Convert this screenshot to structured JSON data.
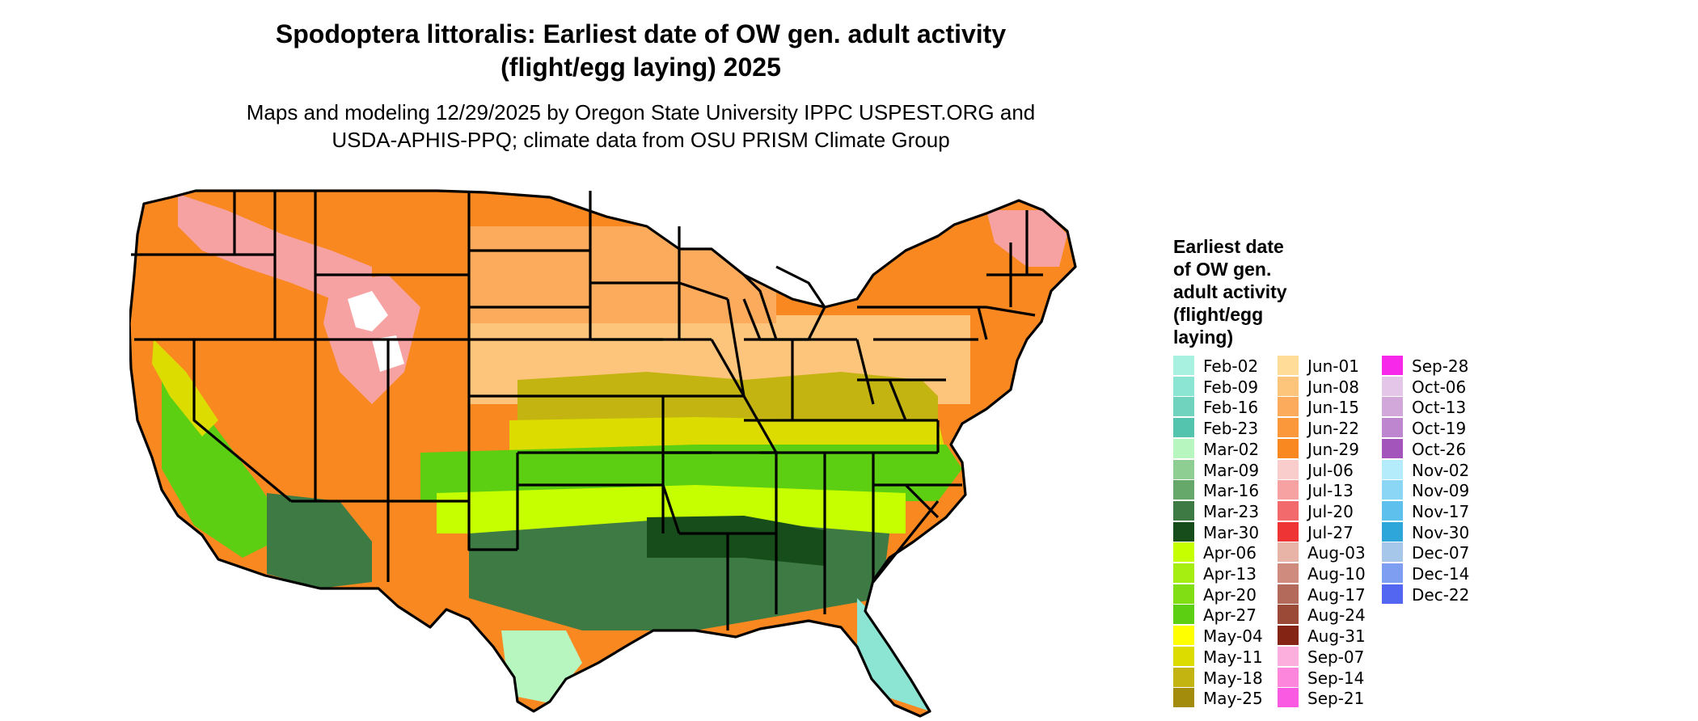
{
  "title": {
    "line1": "Spodoptera littoralis: Earliest date of OW gen. adult activity",
    "line2": "(flight/egg laying) 2025"
  },
  "subtitle": {
    "line1": "Maps and modeling 12/29/2025 by Oregon State University IPPC USPEST.ORG and",
    "line2": "USDA-APHIS-PPQ; climate data from OSU PRISM Climate Group"
  },
  "legend": {
    "title_lines": [
      "Earliest date",
      "of OW gen.",
      "adult activity",
      "(flight/egg",
      "laying)"
    ],
    "items": [
      {
        "label": "Feb-02",
        "color": "#a8f0e0"
      },
      {
        "label": "Feb-09",
        "color": "#8ce4d2"
      },
      {
        "label": "Feb-16",
        "color": "#6fd3be"
      },
      {
        "label": "Feb-23",
        "color": "#55c4ae"
      },
      {
        "label": "Mar-02",
        "color": "#b8f6c0"
      },
      {
        "label": "Mar-09",
        "color": "#8ece92"
      },
      {
        "label": "Mar-16",
        "color": "#66a86a"
      },
      {
        "label": "Mar-23",
        "color": "#3e7a44"
      },
      {
        "label": "Mar-30",
        "color": "#174d1b"
      },
      {
        "label": "Apr-06",
        "color": "#c6ff00"
      },
      {
        "label": "Apr-13",
        "color": "#a6ee12"
      },
      {
        "label": "Apr-20",
        "color": "#82de14"
      },
      {
        "label": "Apr-27",
        "color": "#5ccf12"
      },
      {
        "label": "May-04",
        "color": "#ffff00"
      },
      {
        "label": "May-11",
        "color": "#dcdc00"
      },
      {
        "label": "May-18",
        "color": "#c4b412"
      },
      {
        "label": "May-25",
        "color": "#a38b0c"
      },
      {
        "label": "Jun-01",
        "color": "#ffdc98"
      },
      {
        "label": "Jun-08",
        "color": "#fdc47c"
      },
      {
        "label": "Jun-15",
        "color": "#fcaa5c"
      },
      {
        "label": "Jun-22",
        "color": "#fb983c"
      },
      {
        "label": "Jun-29",
        "color": "#f98820"
      },
      {
        "label": "Jul-06",
        "color": "#f8cdcc"
      },
      {
        "label": "Jul-13",
        "color": "#f6a1a2"
      },
      {
        "label": "Jul-20",
        "color": "#f26a6c"
      },
      {
        "label": "Jul-27",
        "color": "#ee3434"
      },
      {
        "label": "Aug-03",
        "color": "#e9b4a8"
      },
      {
        "label": "Aug-10",
        "color": "#cf8b7e"
      },
      {
        "label": "Aug-17",
        "color": "#b46a5a"
      },
      {
        "label": "Aug-24",
        "color": "#9c4a38"
      },
      {
        "label": "Aug-31",
        "color": "#842414"
      },
      {
        "label": "Sep-07",
        "color": "#fcaedc"
      },
      {
        "label": "Sep-14",
        "color": "#fc86dc"
      },
      {
        "label": "Sep-21",
        "color": "#fa5ae2"
      },
      {
        "label": "Sep-28",
        "color": "#f828ea"
      },
      {
        "label": "Oct-06",
        "color": "#e4c6e8"
      },
      {
        "label": "Oct-13",
        "color": "#d2a8da"
      },
      {
        "label": "Oct-19",
        "color": "#be86ce"
      },
      {
        "label": "Oct-26",
        "color": "#a455bc"
      },
      {
        "label": "Nov-02",
        "color": "#b4ecfc"
      },
      {
        "label": "Nov-09",
        "color": "#8ad6f4"
      },
      {
        "label": "Nov-17",
        "color": "#5ec0ec"
      },
      {
        "label": "Nov-30",
        "color": "#2ea6da"
      },
      {
        "label": "Dec-07",
        "color": "#a6c6ea"
      },
      {
        "label": "Dec-14",
        "color": "#7e9ef2"
      },
      {
        "label": "Dec-22",
        "color": "#5266f2"
      }
    ]
  },
  "map_colors": {
    "northwest_mountains": "#f6a1a2",
    "high_peaks": "#ffffff",
    "north_orange": "#f98820",
    "midwest_orange": "#fcaa5c",
    "corn_belt_light": "#fdc47c",
    "yellow_band": "#dcdc00",
    "olive_band": "#c4b412",
    "green_band": "#5ccf12",
    "lime_band": "#c6ff00",
    "gulf_dark": "#3e7a44",
    "deep_south": "#174d1b",
    "coast_mint": "#b8f6c0",
    "florida_tip": "#8ce4d2",
    "state_border": "#000000"
  }
}
